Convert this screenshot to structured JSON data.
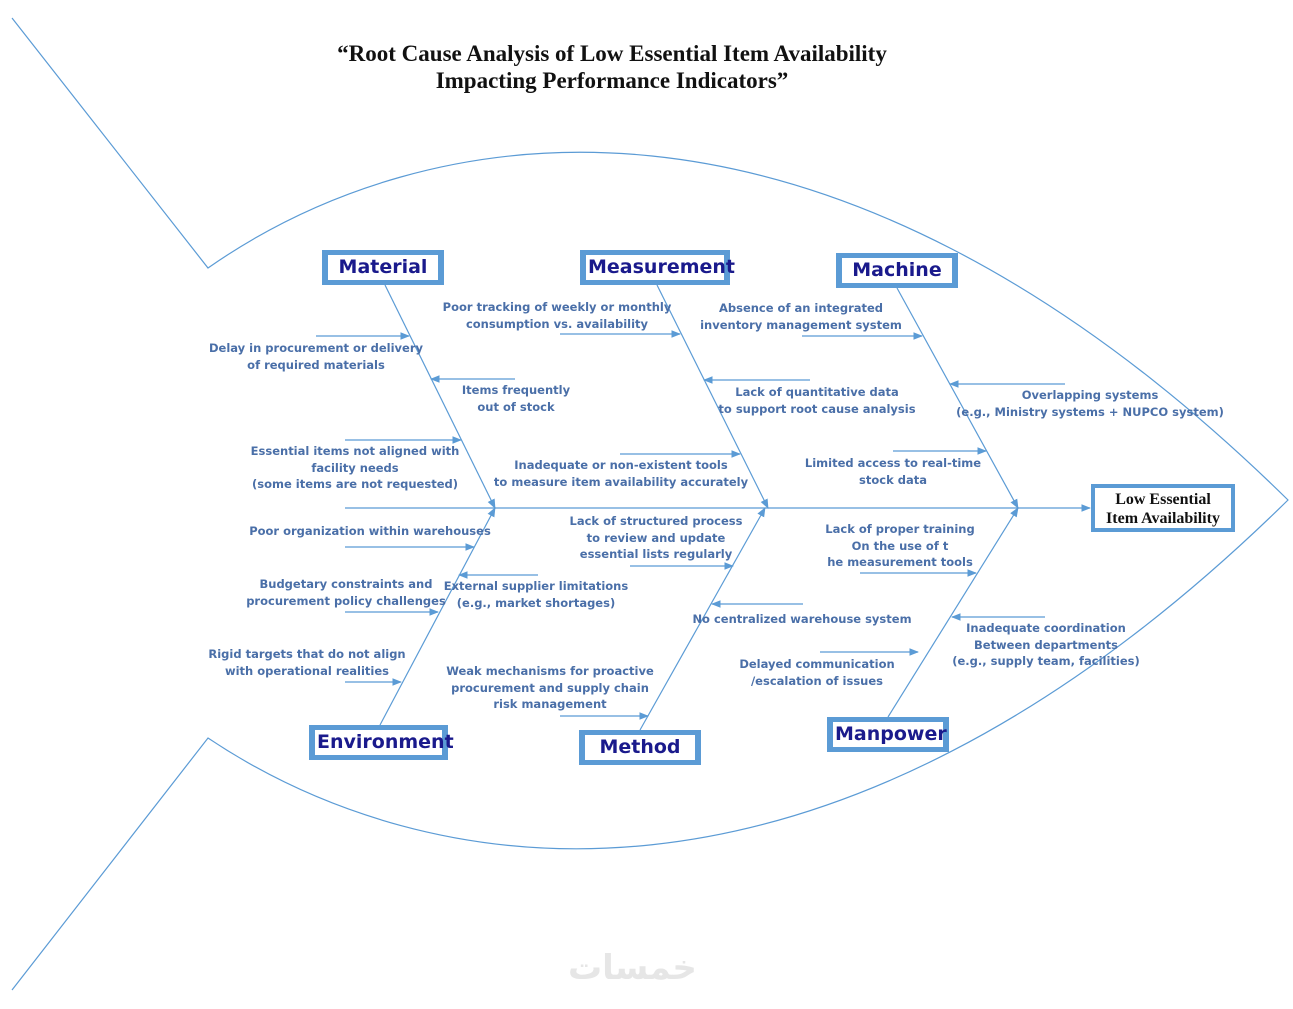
{
  "title": {
    "line1": "“Root Cause Analysis of Low Essential Item Availability",
    "line2": "Impacting Performance Indicators”"
  },
  "effect": {
    "line1": "Low Essential",
    "line2": "Item Availability"
  },
  "categories": {
    "material": "Material",
    "measurement": "Measurement",
    "machine": "Machine",
    "environment": "Environment",
    "method": "Method",
    "manpower": "Manpower"
  },
  "causes": [
    {
      "category": "Material",
      "lines": [
        "Delay in procurement or delivery",
        "of required materials"
      ]
    },
    {
      "category": "Material",
      "lines": [
        "Items frequently",
        "out of stock"
      ]
    },
    {
      "category": "Material",
      "lines": [
        "Essential items not aligned with",
        "facility needs",
        "(some items are not requested)"
      ]
    },
    {
      "category": "Environment",
      "lines": [
        "Poor organization within warehouses"
      ]
    },
    {
      "category": "Environment",
      "lines": [
        "Budgetary constraints and",
        "procurement policy challenges"
      ]
    },
    {
      "category": "Environment",
      "lines": [
        "External supplier limitations",
        "(e.g., market shortages)"
      ]
    },
    {
      "category": "Environment",
      "lines": [
        "Rigid targets that do not align",
        "with operational realities"
      ]
    },
    {
      "category": "Measurement",
      "lines": [
        "Poor tracking of weekly or monthly",
        "consumption vs. availability"
      ]
    },
    {
      "category": "Measurement",
      "lines": [
        "Lack of quantitative data",
        "to support root cause analysis"
      ]
    },
    {
      "category": "Measurement",
      "lines": [
        "Inadequate or non-existent tools",
        "to measure item availability accurately"
      ]
    },
    {
      "category": "Method",
      "lines": [
        "Lack of structured process",
        "to review and update",
        "essential lists regularly"
      ]
    },
    {
      "category": "Method",
      "lines": [
        "No centralized warehouse system"
      ]
    },
    {
      "category": "Method",
      "lines": [
        "Weak mechanisms for proactive",
        "procurement and supply chain",
        "risk management"
      ]
    },
    {
      "category": "Machine",
      "lines": [
        "Absence of an integrated",
        "inventory management system"
      ]
    },
    {
      "category": "Machine",
      "lines": [
        "Overlapping systems",
        "(e.g., Ministry systems + NUPCO system)"
      ]
    },
    {
      "category": "Machine",
      "lines": [
        "Limited access to real-time",
        "stock data"
      ]
    },
    {
      "category": "Manpower",
      "lines": [
        "Lack of proper training",
        "On the use of t",
        "he measurement tools"
      ]
    },
    {
      "category": "Manpower",
      "lines": [
        "Inadequate coordination",
        "Between departments",
        "(e.g., supply team, facilities)"
      ]
    },
    {
      "category": "Manpower",
      "lines": [
        "Delayed communication",
        "/escalation of issues"
      ]
    }
  ],
  "watermark": "خمسات",
  "colors": {
    "line": "#5b9bd5",
    "category_text": "#1a1a8c",
    "cause_text": "#4a6fa8"
  }
}
